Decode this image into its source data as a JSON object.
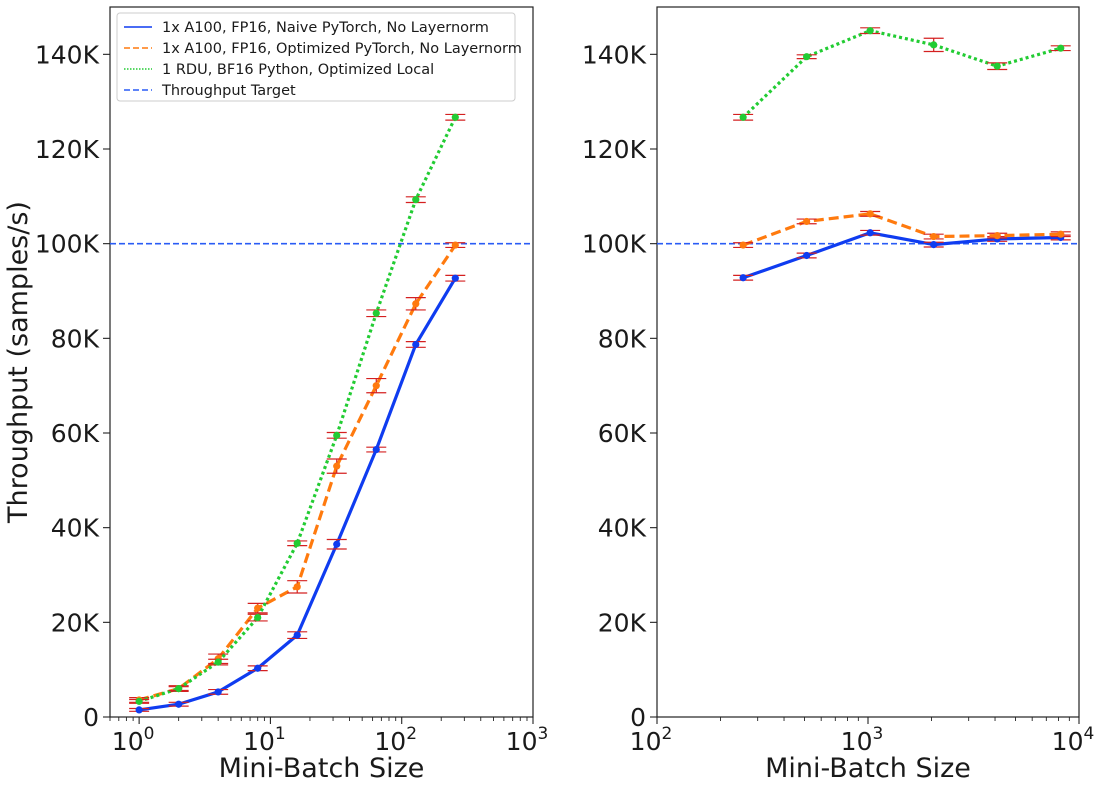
{
  "chart_data": {
    "type": "line",
    "ylabel": "Throughput (samples/s)",
    "colors": {
      "naive": "#0f3cf0",
      "optimized": "#ff7a0e",
      "rdu": "#22cc33",
      "target": "#2a5cf5",
      "errorbar": "#d42020"
    },
    "legend": {
      "placement": "upper-left",
      "entries": [
        "1x A100, FP16, Naive PyTorch, No Layernorm",
        "1x A100, FP16, Optimized PyTorch, No Layernorm",
        "1 RDU, BF16 Python, Optimized Local",
        "Throughput Target"
      ]
    },
    "target": 100000,
    "panels": [
      {
        "xlabel": "Mini-Batch Size",
        "xscale": "log",
        "xlim": [
          0.6,
          1000
        ],
        "ylim": [
          0,
          150000
        ],
        "xticks": [
          {
            "value": 1,
            "base": "10",
            "exp": "0"
          },
          {
            "value": 10,
            "base": "10",
            "exp": "1"
          },
          {
            "value": 100,
            "base": "10",
            "exp": "2"
          },
          {
            "value": 1000,
            "base": "10",
            "exp": "3"
          }
        ],
        "yticks": [
          {
            "value": 0,
            "label": "0"
          },
          {
            "value": 20000,
            "label": "20K"
          },
          {
            "value": 40000,
            "label": "40K"
          },
          {
            "value": 60000,
            "label": "60K"
          },
          {
            "value": 80000,
            "label": "80K"
          },
          {
            "value": 100000,
            "label": "100K"
          },
          {
            "value": 120000,
            "label": "120K"
          },
          {
            "value": 140000,
            "label": "140K"
          }
        ],
        "series": [
          {
            "name": "1x A100, FP16, Naive PyTorch, No Layernorm",
            "key": "naive",
            "dash": "solid",
            "x": [
              1,
              2,
              4,
              8,
              16,
              32,
              64,
              128,
              256
            ],
            "y": [
              1500,
              2700,
              5300,
              10300,
              17300,
              36500,
              56500,
              78700,
              92700
            ],
            "err": [
              300,
              400,
              500,
              500,
              700,
              1000,
              500,
              600,
              600
            ]
          },
          {
            "name": "1x A100, FP16, Optimized PyTorch, No Layernorm",
            "key": "optimized",
            "dash": "dashed",
            "x": [
              1,
              2,
              4,
              8,
              16,
              32,
              64,
              128,
              256
            ],
            "y": [
              3600,
              6000,
              12300,
              23000,
              27500,
              53000,
              70000,
              87300,
              99700
            ],
            "err": [
              500,
              600,
              1000,
              1000,
              1300,
              1500,
              1500,
              1300,
              500
            ]
          },
          {
            "name": "1 RDU, BF16 Python, Optimized Local",
            "key": "rdu",
            "dash": "dotted",
            "x": [
              1,
              2,
              4,
              8,
              16,
              32,
              64,
              128,
              256
            ],
            "y": [
              3300,
              6000,
              11600,
              21000,
              36700,
              59500,
              85300,
              109300,
              126700
            ],
            "err": [
              400,
              400,
              600,
              700,
              500,
              600,
              700,
              600,
              600
            ]
          }
        ]
      },
      {
        "xlabel": "Mini-Batch Size",
        "xscale": "log",
        "xlim": [
          100,
          10000
        ],
        "ylim": [
          0,
          150000
        ],
        "xticks": [
          {
            "value": 100,
            "base": "10",
            "exp": "2"
          },
          {
            "value": 1000,
            "base": "10",
            "exp": "3"
          },
          {
            "value": 10000,
            "base": "10",
            "exp": "4"
          }
        ],
        "yticks": [
          {
            "value": 0,
            "label": "0"
          },
          {
            "value": 20000,
            "label": "20K"
          },
          {
            "value": 40000,
            "label": "40K"
          },
          {
            "value": 60000,
            "label": "60K"
          },
          {
            "value": 80000,
            "label": "80K"
          },
          {
            "value": 100000,
            "label": "100K"
          },
          {
            "value": 120000,
            "label": "120K"
          },
          {
            "value": 140000,
            "label": "140K"
          }
        ],
        "series": [
          {
            "name": "1x A100, FP16, Naive PyTorch, No Layernorm",
            "key": "naive",
            "dash": "solid",
            "x": [
              256,
              512,
              1024,
              2048,
              4096,
              8192
            ],
            "y": [
              92800,
              97500,
              102300,
              99800,
              101000,
              101300
            ],
            "err": [
              500,
              500,
              500,
              500,
              500,
              500
            ]
          },
          {
            "name": "1x A100, FP16, Optimized PyTorch, No Layernorm",
            "key": "optimized",
            "dash": "dashed",
            "x": [
              256,
              512,
              1024,
              2048,
              4096,
              8192
            ],
            "y": [
              99700,
              104700,
              106300,
              101500,
              101700,
              102000
            ],
            "err": [
              500,
              500,
              500,
              500,
              500,
              500
            ]
          },
          {
            "name": "1 RDU, BF16 Python, Optimized Local",
            "key": "rdu",
            "dash": "dotted",
            "x": [
              256,
              512,
              1024,
              2048,
              4096,
              8192
            ],
            "y": [
              126700,
              139500,
              145000,
              142000,
              137500,
              141300
            ],
            "err": [
              600,
              400,
              600,
              1400,
              700,
              500
            ]
          }
        ]
      }
    ]
  }
}
